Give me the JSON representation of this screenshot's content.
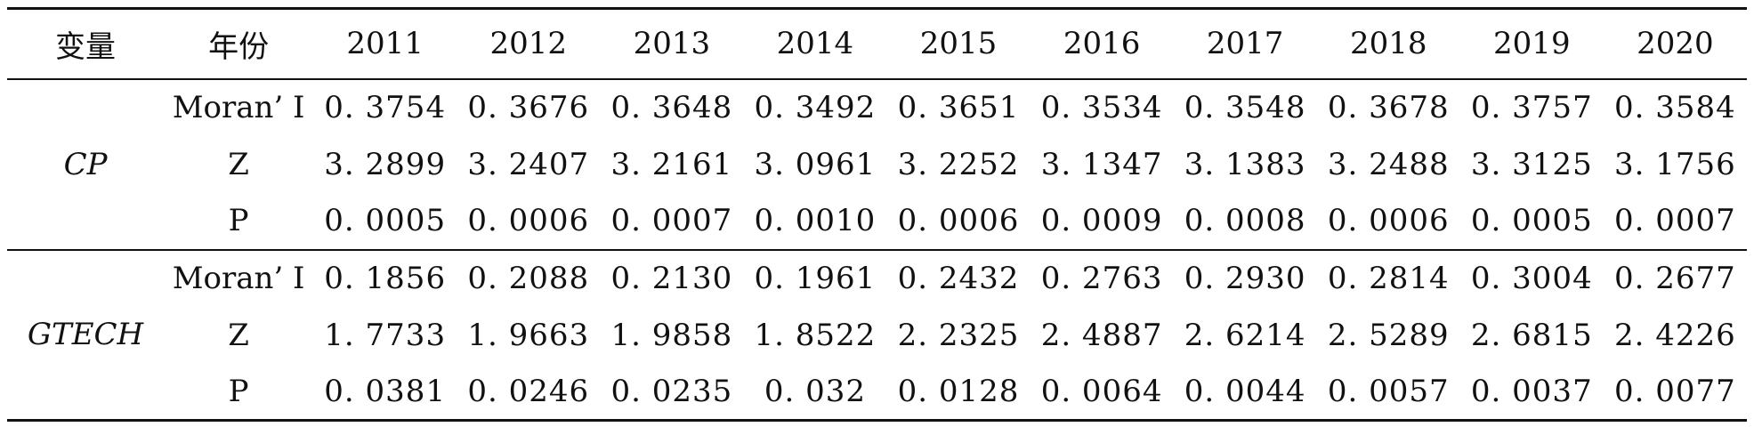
{
  "table": {
    "header": {
      "variable": "变量",
      "year": "年份",
      "years": [
        "2011",
        "2012",
        "2013",
        "2014",
        "2015",
        "2016",
        "2017",
        "2018",
        "2019",
        "2020"
      ]
    },
    "groups": [
      {
        "name": "CP",
        "rows": [
          {
            "stat": "Moran’ I",
            "values": [
              "0. 3754",
              "0. 3676",
              "0. 3648",
              "0. 3492",
              "0. 3651",
              "0. 3534",
              "0. 3548",
              "0. 3678",
              "0. 3757",
              "0. 3584"
            ]
          },
          {
            "stat": "Z",
            "values": [
              "3. 2899",
              "3. 2407",
              "3. 2161",
              "3. 0961",
              "3. 2252",
              "3. 1347",
              "3. 1383",
              "3. 2488",
              "3. 3125",
              "3. 1756"
            ]
          },
          {
            "stat": "P",
            "values": [
              "0. 0005",
              "0. 0006",
              "0. 0007",
              "0. 0010",
              "0. 0006",
              "0. 0009",
              "0. 0008",
              "0. 0006",
              "0. 0005",
              "0. 0007"
            ]
          }
        ]
      },
      {
        "name": "GTECH",
        "rows": [
          {
            "stat": "Moran’ I",
            "values": [
              "0. 1856",
              "0. 2088",
              "0. 2130",
              "0. 1961",
              "0. 2432",
              "0. 2763",
              "0. 2930",
              "0. 2814",
              "0. 3004",
              "0. 2677"
            ]
          },
          {
            "stat": "Z",
            "values": [
              "1. 7733",
              "1. 9663",
              "1. 9858",
              "1. 8522",
              "2. 2325",
              "2. 4887",
              "2. 6214",
              "2. 5289",
              "2. 6815",
              "2. 4226"
            ]
          },
          {
            "stat": "P",
            "values": [
              "0. 0381",
              "0. 0246",
              "0. 0235",
              "0. 032",
              "0. 0128",
              "0. 0064",
              "0. 0044",
              "0. 0057",
              "0. 0037",
              "0. 0077"
            ]
          }
        ]
      }
    ]
  }
}
